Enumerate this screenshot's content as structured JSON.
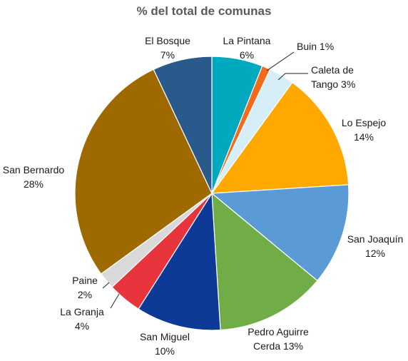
{
  "chart_data": {
    "type": "pie",
    "title": "% del total de comunas",
    "slices": [
      {
        "label": "La Pintana",
        "value": 6,
        "display": [
          "La Pintana",
          "6%"
        ],
        "color": "#00A9BD"
      },
      {
        "label": "Buin",
        "value": 1,
        "display": [
          "Buin 1%"
        ],
        "color": "#F26A1B"
      },
      {
        "label": "Caleta de Tango",
        "value": 3,
        "display": [
          "Caleta de",
          "Tango 3%"
        ],
        "color": "#D6EEF8"
      },
      {
        "label": "Lo Espejo",
        "value": 14,
        "display": [
          "Lo Espejo",
          "14%"
        ],
        "color": "#FFA800"
      },
      {
        "label": "San Joaquín",
        "value": 12,
        "display": [
          "San Joaquín",
          "12%"
        ],
        "color": "#5B9BD5"
      },
      {
        "label": "Pedro Aguirre Cerda",
        "value": 13,
        "display": [
          "Pedro Aguirre",
          "Cerda 13%"
        ],
        "color": "#70AD47"
      },
      {
        "label": "San Miguel",
        "value": 10,
        "display": [
          "San Miguel",
          "10%"
        ],
        "color": "#0D3A96"
      },
      {
        "label": "La Granja",
        "value": 4,
        "display": [
          "La Granja",
          "4%"
        ],
        "color": "#E8353D"
      },
      {
        "label": "Paine",
        "value": 2,
        "display": [
          "Paine",
          "2%"
        ],
        "color": "#D9D9D9"
      },
      {
        "label": "San Bernardo",
        "value": 28,
        "display": [
          "San Bernardo",
          "28%"
        ],
        "color": "#9E6A00"
      },
      {
        "label": "El Bosque",
        "value": 7,
        "display": [
          "El Bosque",
          "7%"
        ],
        "color": "#2A5A8C"
      }
    ]
  }
}
